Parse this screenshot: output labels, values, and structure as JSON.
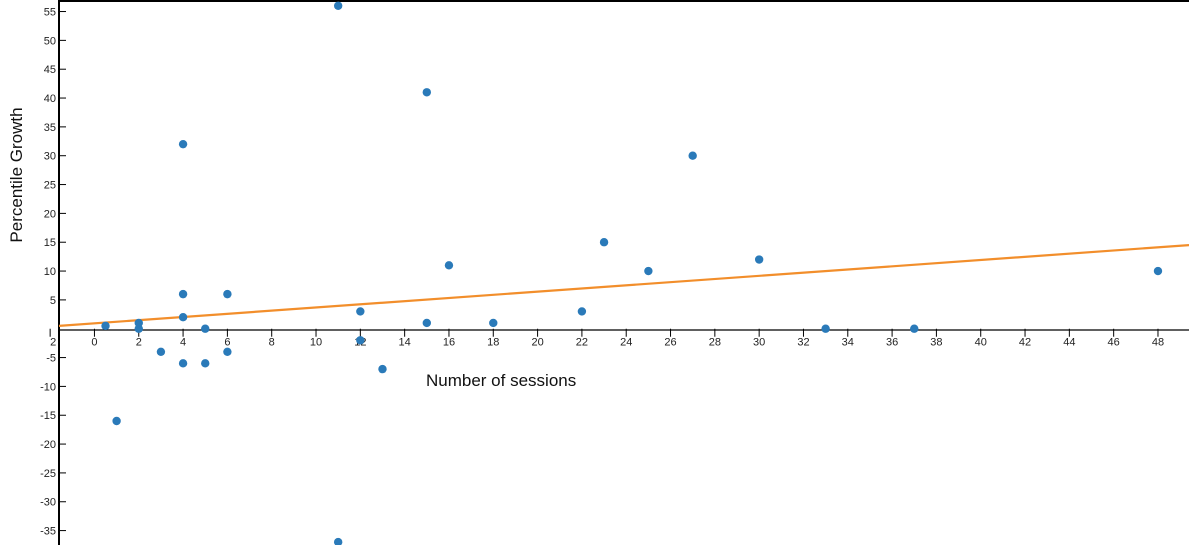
{
  "chart_data": {
    "type": "scatter",
    "xlabel": "Number of sessions",
    "ylabel": "Percentile Growth",
    "x_tick_labels": [
      "2",
      "0",
      "2",
      "4",
      "6",
      "8",
      "10",
      "12",
      "14",
      "16",
      "18",
      "20",
      "22",
      "24",
      "26",
      "28",
      "30",
      "32",
      "34",
      "36",
      "38",
      "40",
      "42",
      "44",
      "46",
      "48"
    ],
    "y_tick_labels": [
      "55",
      "50",
      "45",
      "40",
      "35",
      "30",
      "25",
      "20",
      "15",
      "10",
      "5",
      "-5",
      "-10",
      "-15",
      "-20",
      "-25",
      "-30",
      "-35"
    ],
    "xlim": [
      -1.6,
      49.4
    ],
    "ylim": [
      -37.5,
      57
    ],
    "grid": false,
    "colors": {
      "points": "#2a7ab9",
      "trendline": "#f28e2b",
      "axes": "#000000"
    },
    "series": [
      {
        "points": [
          {
            "x": 0.5,
            "y": 0.5
          },
          {
            "x": 1,
            "y": -16
          },
          {
            "x": 2,
            "y": 1
          },
          {
            "x": 2,
            "y": 0
          },
          {
            "x": 3,
            "y": -4
          },
          {
            "x": 4,
            "y": 32
          },
          {
            "x": 4,
            "y": 6
          },
          {
            "x": 4,
            "y": 2
          },
          {
            "x": 4,
            "y": -6
          },
          {
            "x": 5,
            "y": 0
          },
          {
            "x": 5,
            "y": -6
          },
          {
            "x": 6,
            "y": 6
          },
          {
            "x": 6,
            "y": -4
          },
          {
            "x": 11,
            "y": 56
          },
          {
            "x": 11,
            "y": -37
          },
          {
            "x": 12,
            "y": 3
          },
          {
            "x": 12,
            "y": -2
          },
          {
            "x": 13,
            "y": -7
          },
          {
            "x": 15,
            "y": 41
          },
          {
            "x": 15,
            "y": 1
          },
          {
            "x": 16,
            "y": 11
          },
          {
            "x": 18,
            "y": 1
          },
          {
            "x": 22,
            "y": 3
          },
          {
            "x": 23,
            "y": 15
          },
          {
            "x": 25,
            "y": 10
          },
          {
            "x": 27,
            "y": 30
          },
          {
            "x": 30,
            "y": 12
          },
          {
            "x": 33,
            "y": 0
          },
          {
            "x": 37,
            "y": 0
          },
          {
            "x": 48,
            "y": 10
          }
        ]
      }
    ],
    "trendline": {
      "x": [
        -1.6,
        49.4
      ],
      "y": [
        0.5,
        14.5
      ]
    }
  }
}
